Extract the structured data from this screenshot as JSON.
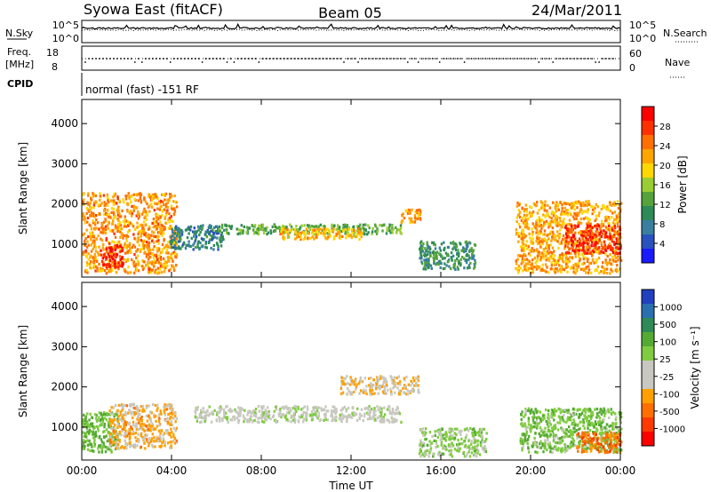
{
  "header": {
    "station": "Syowa East (fitACF)",
    "beam": "Beam 05",
    "date": "24/Mar/2011"
  },
  "noise_panel": {
    "left_label": "N.Sky",
    "right_label": "N.Search",
    "ticks": [
      "10^5",
      "10^0"
    ]
  },
  "freq_panel": {
    "left_label_line1": "Freq.",
    "left_label_line2": "[MHz]",
    "left_ticks": [
      "18",
      "8"
    ],
    "right_label": "Nave",
    "right_ticks": [
      "60",
      "0"
    ]
  },
  "cpid_panel": {
    "label": "CPID",
    "text": "normal (fast) -151 RF"
  },
  "colors": {
    "power_scale": [
      "#1a1aff",
      "#2a52be",
      "#3a7fa0",
      "#2e8b57",
      "#56a33c",
      "#9acd32",
      "#ffd700",
      "#ffa500",
      "#ff7000",
      "#ff3000",
      "#ff0000"
    ],
    "velocity_scale": [
      "#2040c0",
      "#2a70b0",
      "#2e8b57",
      "#55aa33",
      "#80cc40",
      "#c8c8c0",
      "#c8c8c0",
      "#ffa000",
      "#ff7000",
      "#ff3a00",
      "#ff0000"
    ]
  },
  "chart_data": [
    {
      "type": "heatmap",
      "title": "Power",
      "xlabel": "Time UT",
      "ylabel": "Slant Range [km]",
      "x_ticks": [
        "00:00",
        "04:00",
        "08:00",
        "12:00",
        "16:00",
        "20:00",
        "00:00"
      ],
      "xlim_hours": [
        0,
        24
      ],
      "y_ticks": [
        1000,
        2000,
        3000,
        4000
      ],
      "ylim": [
        180,
        4600
      ],
      "colorbar": {
        "label": "Power [dB]",
        "ticks": [
          4,
          8,
          12,
          16,
          20,
          24,
          28
        ],
        "range": [
          0,
          30
        ]
      },
      "echo_regions": [
        {
          "t0": 0.0,
          "t1": 4.2,
          "r0": 300,
          "r1": 2300,
          "value": 22
        },
        {
          "t0": 0.8,
          "t1": 1.8,
          "r0": 450,
          "r1": 1000,
          "value": 29
        },
        {
          "t0": 3.9,
          "t1": 6.3,
          "r0": 900,
          "r1": 1500,
          "value": 7
        },
        {
          "t0": 6.0,
          "t1": 14.2,
          "r0": 1280,
          "r1": 1520,
          "value": 12
        },
        {
          "t0": 8.8,
          "t1": 12.5,
          "r0": 1150,
          "r1": 1420,
          "value": 20
        },
        {
          "t0": 14.2,
          "t1": 15.1,
          "r0": 1550,
          "r1": 1900,
          "value": 22
        },
        {
          "t0": 15.0,
          "t1": 17.5,
          "r0": 400,
          "r1": 1100,
          "value": 9
        },
        {
          "t0": 19.3,
          "t1": 24.0,
          "r0": 300,
          "r1": 2100,
          "value": 21
        },
        {
          "t0": 21.5,
          "t1": 24.0,
          "r0": 800,
          "r1": 1500,
          "value": 28
        }
      ]
    },
    {
      "type": "heatmap",
      "title": "Velocity",
      "xlabel": "Time UT",
      "ylabel": "Slant Range [km]",
      "x_ticks": [
        "00:00",
        "04:00",
        "08:00",
        "12:00",
        "16:00",
        "20:00",
        "00:00"
      ],
      "xlim_hours": [
        0,
        24
      ],
      "y_ticks": [
        1000,
        2000,
        3000,
        4000
      ],
      "ylim": [
        180,
        4600
      ],
      "colorbar": {
        "label": "Velocity [m s⁻¹]",
        "ticks": [
          "1000",
          "500",
          "100",
          "25",
          "-25",
          "-100",
          "-500",
          "-1000"
        ]
      },
      "echo_regions": [
        {
          "t0": 0.0,
          "t1": 1.6,
          "r0": 400,
          "r1": 1400,
          "value": 300
        },
        {
          "t0": 1.2,
          "t1": 4.2,
          "r0": 500,
          "r1": 1600,
          "value": -350
        },
        {
          "t0": 5.0,
          "t1": 14.2,
          "r0": 1150,
          "r1": 1550,
          "value": 0
        },
        {
          "t0": 11.5,
          "t1": 15.0,
          "r0": 1850,
          "r1": 2300,
          "value": -250
        },
        {
          "t0": 15.0,
          "t1": 18.0,
          "r0": 300,
          "r1": 1000,
          "value": 150
        },
        {
          "t0": 19.5,
          "t1": 24.0,
          "r0": 400,
          "r1": 1500,
          "value": 250
        },
        {
          "t0": 22.0,
          "t1": 24.0,
          "r0": 400,
          "r1": 900,
          "value": -600
        }
      ]
    }
  ]
}
